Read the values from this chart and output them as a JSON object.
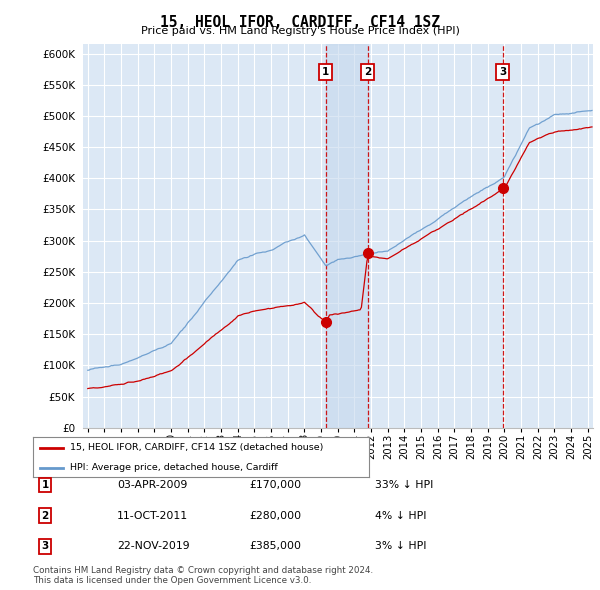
{
  "title": "15, HEOL IFOR, CARDIFF, CF14 1SZ",
  "subtitle": "Price paid vs. HM Land Registry's House Price Index (HPI)",
  "ylabel_ticks": [
    "£0",
    "£50K",
    "£100K",
    "£150K",
    "£200K",
    "£250K",
    "£300K",
    "£350K",
    "£400K",
    "£450K",
    "£500K",
    "£550K",
    "£600K"
  ],
  "ytick_values": [
    0,
    50000,
    100000,
    150000,
    200000,
    250000,
    300000,
    350000,
    400000,
    450000,
    500000,
    550000,
    600000
  ],
  "ylim": [
    0,
    615000
  ],
  "xlim_start": 1994.7,
  "xlim_end": 2025.3,
  "xtick_years": [
    1995,
    1996,
    1997,
    1998,
    1999,
    2000,
    2001,
    2002,
    2003,
    2004,
    2005,
    2006,
    2007,
    2008,
    2009,
    2010,
    2011,
    2012,
    2013,
    2014,
    2015,
    2016,
    2017,
    2018,
    2019,
    2020,
    2021,
    2022,
    2023,
    2024,
    2025
  ],
  "plot_bg_color": "#dce8f5",
  "grid_color": "#ffffff",
  "hpi_line_color": "#6699cc",
  "price_line_color": "#cc0000",
  "sale_marker_color": "#cc0000",
  "vline_color": "#cc0000",
  "shade_color": "#c5d8ee",
  "legend_box_color": "#ffffff",
  "legend_border_color": "#888888",
  "transaction_labels": [
    "1",
    "2",
    "3"
  ],
  "transaction_dates": [
    2009.27,
    2011.79,
    2019.9
  ],
  "transaction_prices": [
    170000,
    280000,
    385000
  ],
  "transaction_date_strs": [
    "03-APR-2009",
    "11-OCT-2011",
    "22-NOV-2019"
  ],
  "transaction_price_strs": [
    "£170,000",
    "£280,000",
    "£385,000"
  ],
  "transaction_hpi_strs": [
    "33% ↓ HPI",
    "4% ↓ HPI",
    "3% ↓ HPI"
  ],
  "label_box_color": "#ffffff",
  "label_box_border": "#cc0000",
  "footer_text": "Contains HM Land Registry data © Crown copyright and database right 2024.\nThis data is licensed under the Open Government Licence v3.0.",
  "legend_entry1": "15, HEOL IFOR, CARDIFF, CF14 1SZ (detached house)",
  "legend_entry2": "HPI: Average price, detached house, Cardiff"
}
